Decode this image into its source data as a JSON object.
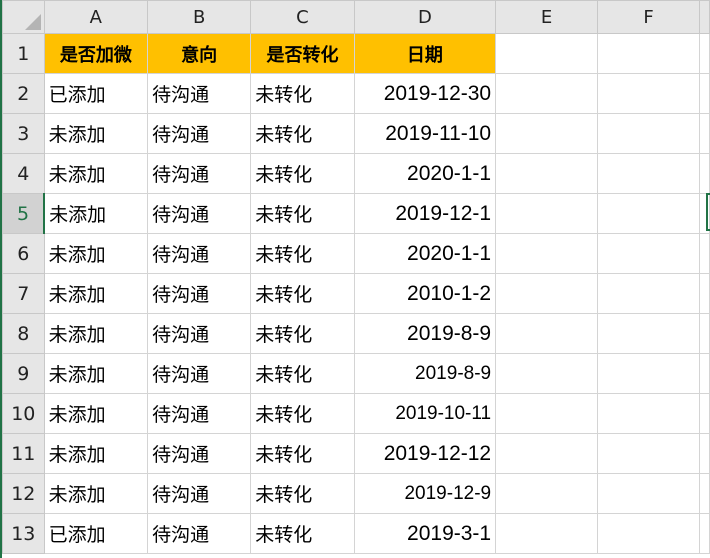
{
  "columns": [
    "A",
    "B",
    "C",
    "D",
    "E",
    "F"
  ],
  "header_row": {
    "row": "1",
    "cells": [
      "是否加微",
      "意向",
      "是否转化",
      "日期"
    ]
  },
  "rows": [
    {
      "row": "2",
      "cells": [
        "已添加",
        "待沟通",
        "未转化",
        "2019-12-30"
      ]
    },
    {
      "row": "3",
      "cells": [
        "未添加",
        "待沟通",
        "未转化",
        "2019-11-10"
      ]
    },
    {
      "row": "4",
      "cells": [
        "未添加",
        "待沟通",
        "未转化",
        "2020-1-1"
      ]
    },
    {
      "row": "5",
      "cells": [
        "未添加",
        "待沟通",
        "未转化",
        "2019-12-1"
      ]
    },
    {
      "row": "6",
      "cells": [
        "未添加",
        "待沟通",
        "未转化",
        "2020-1-1"
      ]
    },
    {
      "row": "7",
      "cells": [
        "未添加",
        "待沟通",
        "未转化",
        "2010-1-2"
      ]
    },
    {
      "row": "8",
      "cells": [
        "未添加",
        "待沟通",
        "未转化",
        "2019-8-9"
      ]
    },
    {
      "row": "9",
      "cells": [
        "未添加",
        "待沟通",
        "未转化",
        "2019-8-9"
      ]
    },
    {
      "row": "10",
      "cells": [
        "未添加",
        "待沟通",
        "未转化",
        "2019-10-11"
      ]
    },
    {
      "row": "11",
      "cells": [
        "未添加",
        "待沟通",
        "未转化",
        "2019-12-12"
      ]
    },
    {
      "row": "12",
      "cells": [
        "未添加",
        "待沟通",
        "未转化",
        "2019-12-9"
      ]
    },
    {
      "row": "13",
      "cells": [
        "已添加",
        "待沟通",
        "未转化",
        "2019-3-1"
      ]
    }
  ],
  "selected_row": "5",
  "colors": {
    "header_fill": "#ffc000",
    "accent": "#217346"
  }
}
